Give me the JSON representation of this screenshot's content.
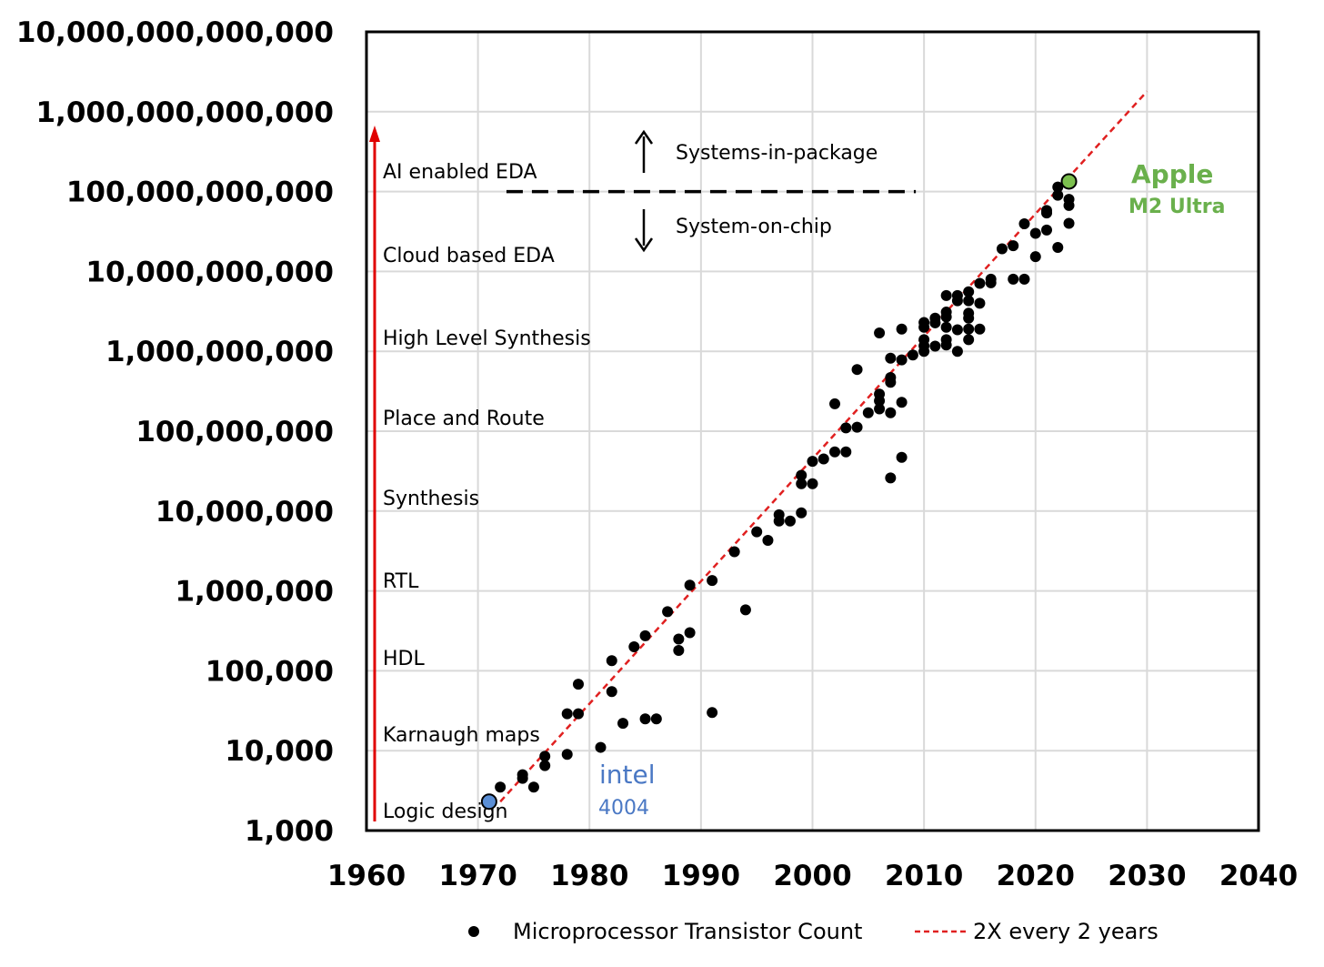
{
  "chart_data": {
    "type": "scatter",
    "title": "",
    "xlabel": "",
    "ylabel": "",
    "xlim": [
      1960,
      2040
    ],
    "ylim": [
      1000,
      10000000000000
    ],
    "y_scale": "log",
    "grid": true,
    "legend_placement": "bottom",
    "x_ticks": [
      "1960",
      "1970",
      "1980",
      "1990",
      "2000",
      "2010",
      "2020",
      "2030",
      "2040"
    ],
    "y_ticks": [
      "1,000",
      "10,000",
      "100,000",
      "1,000,000",
      "10,000,000",
      "100,000,000",
      "1,000,000,000",
      "10,000,000,000",
      "100,000,000,000",
      "1,000,000,000,000",
      "10,000,000,000,000"
    ],
    "series": [
      {
        "name": "Microprocessor Transistor Count",
        "color": "#000000",
        "points": [
          [
            1972,
            3500
          ],
          [
            1974,
            4500
          ],
          [
            1974,
            5000
          ],
          [
            1975,
            3500
          ],
          [
            1976,
            6500
          ],
          [
            1976,
            8500
          ],
          [
            1978,
            9000
          ],
          [
            1978,
            29000
          ],
          [
            1979,
            29000
          ],
          [
            1979,
            68000
          ],
          [
            1981,
            11000
          ],
          [
            1982,
            55000
          ],
          [
            1982,
            134000
          ],
          [
            1983,
            22000
          ],
          [
            1984,
            200000
          ],
          [
            1985,
            25000
          ],
          [
            1985,
            275000
          ],
          [
            1986,
            25000
          ],
          [
            1987,
            550000
          ],
          [
            1988,
            180000
          ],
          [
            1988,
            250000
          ],
          [
            1989,
            300000
          ],
          [
            1989,
            1180000
          ],
          [
            1991,
            30000
          ],
          [
            1991,
            1350000
          ],
          [
            1993,
            3100000
          ],
          [
            1994,
            580000
          ],
          [
            1995,
            5500000
          ],
          [
            1996,
            4300000
          ],
          [
            1997,
            7500000
          ],
          [
            1997,
            9000000
          ],
          [
            1998,
            7500000
          ],
          [
            1999,
            9500000
          ],
          [
            1999,
            22000000
          ],
          [
            1999,
            28000000
          ],
          [
            2000,
            22000000
          ],
          [
            2000,
            42000000
          ],
          [
            2001,
            45000000
          ],
          [
            2002,
            55000000
          ],
          [
            2002,
            220000000
          ],
          [
            2003,
            55000000
          ],
          [
            2003,
            110000000
          ],
          [
            2004,
            112000000
          ],
          [
            2004,
            592000000
          ],
          [
            2005,
            170000000
          ],
          [
            2006,
            190000000
          ],
          [
            2006,
            240000000
          ],
          [
            2006,
            291000000
          ],
          [
            2006,
            1700000000
          ],
          [
            2007,
            26000000
          ],
          [
            2007,
            170000000
          ],
          [
            2007,
            410000000
          ],
          [
            2007,
            470000000
          ],
          [
            2007,
            820000000
          ],
          [
            2008,
            47000000
          ],
          [
            2008,
            230000000
          ],
          [
            2008,
            780000000
          ],
          [
            2008,
            1900000000
          ],
          [
            2009,
            900000000
          ],
          [
            2010,
            1000000000
          ],
          [
            2010,
            1170000000
          ],
          [
            2010,
            1400000000
          ],
          [
            2010,
            2000000000
          ],
          [
            2010,
            2300000000
          ],
          [
            2011,
            1160000000
          ],
          [
            2011,
            2270000000
          ],
          [
            2011,
            2600000000
          ],
          [
            2012,
            1200000000
          ],
          [
            2012,
            1400000000
          ],
          [
            2012,
            2000000000
          ],
          [
            2012,
            2700000000
          ],
          [
            2012,
            3100000000
          ],
          [
            2012,
            5000000000
          ],
          [
            2013,
            1000000000
          ],
          [
            2013,
            1860000000
          ],
          [
            2013,
            4300000000
          ],
          [
            2013,
            5000000000
          ],
          [
            2014,
            1400000000
          ],
          [
            2014,
            1900000000
          ],
          [
            2014,
            2600000000
          ],
          [
            2014,
            3000000000
          ],
          [
            2014,
            4300000000
          ],
          [
            2014,
            5560000000
          ],
          [
            2015,
            1900000000
          ],
          [
            2015,
            4000000000
          ],
          [
            2015,
            7100000000
          ],
          [
            2016,
            7200000000
          ],
          [
            2016,
            8000000000
          ],
          [
            2017,
            19200000000
          ],
          [
            2018,
            8000000000
          ],
          [
            2018,
            21000000000
          ],
          [
            2019,
            8000000000
          ],
          [
            2019,
            39540000000
          ],
          [
            2020,
            15300000000
          ],
          [
            2020,
            30000000000
          ],
          [
            2021,
            33000000000
          ],
          [
            2021,
            54000000000
          ],
          [
            2021,
            58000000000
          ],
          [
            2022,
            20000000000
          ],
          [
            2022,
            90000000000
          ],
          [
            2022,
            114000000000
          ],
          [
            2023,
            40000000000
          ],
          [
            2023,
            67000000000
          ],
          [
            2023,
            80000000000
          ]
        ]
      },
      {
        "name": "2X every 2 years",
        "color": "#e02020",
        "style": "dashed",
        "line": [
          [
            1972,
            2300
          ],
          [
            2030,
            1800000000000
          ]
        ]
      }
    ],
    "highlights": [
      {
        "label": "intel",
        "sublabel": "4004",
        "x": 1971,
        "y": 2300,
        "color": "#5b8fd6"
      },
      {
        "label": "Apple",
        "sublabel": "M2 Ultra",
        "x": 2023,
        "y": 134000000000,
        "color": "#7cc04f"
      }
    ],
    "design_stages": [
      "Logic design",
      "Karnaugh maps",
      "HDL",
      "RTL",
      "Synthesis",
      "Place and Route",
      "High Level Synthesis",
      "Cloud based EDA",
      "AI enabled EDA"
    ],
    "stage_arrow_color": "#e00000",
    "threshold": {
      "y": 100000000000,
      "x_start": 1975,
      "x_end": 2010,
      "above_label": "Systems-in-package",
      "below_label": "System-on-chip"
    }
  }
}
